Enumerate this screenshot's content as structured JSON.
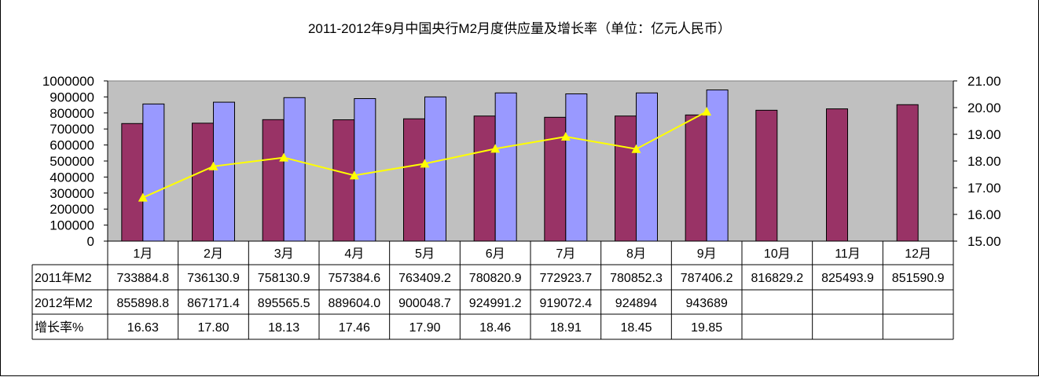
{
  "chart_data": {
    "type": "bar",
    "title": "2011-2012年9月中国央行M2月度供应量及增长率（单位：亿元人民币）",
    "categories": [
      "1月",
      "2月",
      "3月",
      "4月",
      "5月",
      "6月",
      "7月",
      "8月",
      "9月",
      "10月",
      "11月",
      "12月"
    ],
    "series": [
      {
        "name": "2011年M2",
        "type": "bar",
        "axis": "left",
        "color": "#993366",
        "values": [
          733884.8,
          736130.9,
          758130.9,
          757384.6,
          763409.2,
          780820.9,
          772923.7,
          780852.3,
          787406.2,
          816829.2,
          825493.9,
          851590.9
        ],
        "labels": [
          "733884.8",
          "736130.9",
          "758130.9",
          "757384.6",
          "763409.2",
          "780820.9",
          "772923.7",
          "780852.3",
          "787406.2",
          "816829.2",
          "825493.9",
          "851590.9"
        ]
      },
      {
        "name": "2012年M2",
        "type": "bar",
        "axis": "left",
        "color": "#9999FF",
        "values": [
          855898.8,
          867171.4,
          895565.5,
          889604.0,
          900048.7,
          924991.2,
          919072.4,
          924894,
          943689,
          null,
          null,
          null
        ],
        "labels": [
          "855898.8",
          "867171.4",
          "895565.5",
          "889604.0",
          "900048.7",
          "924991.2",
          "919072.4",
          "924894",
          "943689",
          "",
          "",
          ""
        ]
      },
      {
        "name": "增长率%",
        "type": "line",
        "axis": "right",
        "color": "#FFFF00",
        "values": [
          16.63,
          17.8,
          18.13,
          17.46,
          17.9,
          18.46,
          18.91,
          18.45,
          19.85,
          null,
          null,
          null
        ],
        "labels": [
          "16.63",
          "17.80",
          "18.13",
          "17.46",
          "17.90",
          "18.46",
          "18.91",
          "18.45",
          "19.85",
          "",
          "",
          ""
        ]
      }
    ],
    "y_left": {
      "range": [
        0,
        1000000
      ],
      "ticks": [
        "0",
        "100000",
        "200000",
        "300000",
        "400000",
        "500000",
        "600000",
        "700000",
        "800000",
        "900000",
        "1000000"
      ]
    },
    "y_right": {
      "range": [
        15,
        21
      ],
      "ticks": [
        "15.00",
        "16.00",
        "17.00",
        "18.00",
        "19.00",
        "20.00",
        "21.00"
      ]
    },
    "plot_background": "#C0C0C0",
    "grid": false,
    "legend": "data-table-below"
  }
}
